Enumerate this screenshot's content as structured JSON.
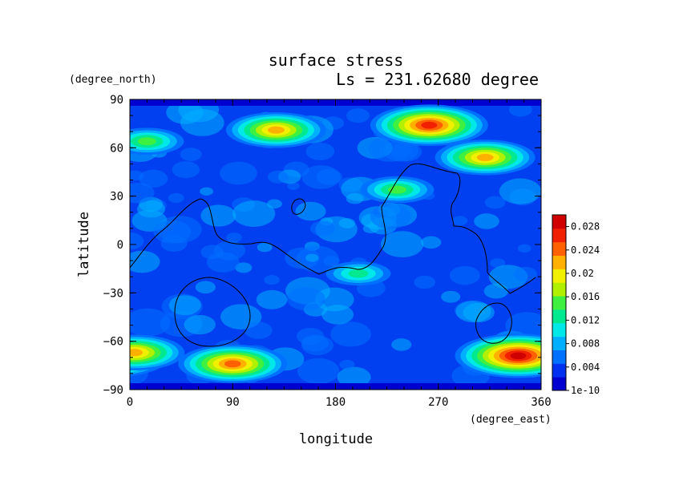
{
  "chart_data": {
    "type": "heatmap",
    "title": "surface stress",
    "subtitle": "Ls = 231.62680 degree",
    "xlabel": "longitude",
    "ylabel": "latitude",
    "xunits": "(degree_east)",
    "yunits": "(degree_north)",
    "xlim": [
      0,
      360
    ],
    "ylim": [
      -90,
      90
    ],
    "xticks": [
      0,
      90,
      180,
      270,
      360
    ],
    "yticks": [
      90,
      60,
      30,
      0,
      -30,
      -60,
      -90
    ],
    "colorbar": {
      "min": 0,
      "max": 0.03,
      "labels": [
        "0.028",
        "0.024",
        "0.02",
        "0.016",
        "0.012",
        "0.008",
        "0.004",
        "1e-10"
      ],
      "label_values": [
        0.028,
        0.024,
        0.02,
        0.016,
        0.012,
        0.008,
        0.004,
        0
      ],
      "colors": [
        "#0000d0",
        "#0030f0",
        "#0070ff",
        "#00b0ff",
        "#00e8e8",
        "#00e890",
        "#40f040",
        "#b0f000",
        "#f0f000",
        "#ffb000",
        "#ff6000",
        "#f02000",
        "#d00000"
      ]
    },
    "hotspots": [
      {
        "lon": 128,
        "lat": 71,
        "value": 0.021
      },
      {
        "lon": 262,
        "lat": 74,
        "value": 0.027
      },
      {
        "lon": 311,
        "lat": 54,
        "value": 0.021
      },
      {
        "lon": 90,
        "lat": -74,
        "value": 0.024
      },
      {
        "lon": 340,
        "lat": -69,
        "value": 0.028
      },
      {
        "lon": 4,
        "lat": -67,
        "value": 0.022
      },
      {
        "lon": 234,
        "lat": 34,
        "value": 0.016
      },
      {
        "lon": 15,
        "lat": 64,
        "value": 0.014
      },
      {
        "lon": 200,
        "lat": -18,
        "value": 0.013
      }
    ]
  }
}
